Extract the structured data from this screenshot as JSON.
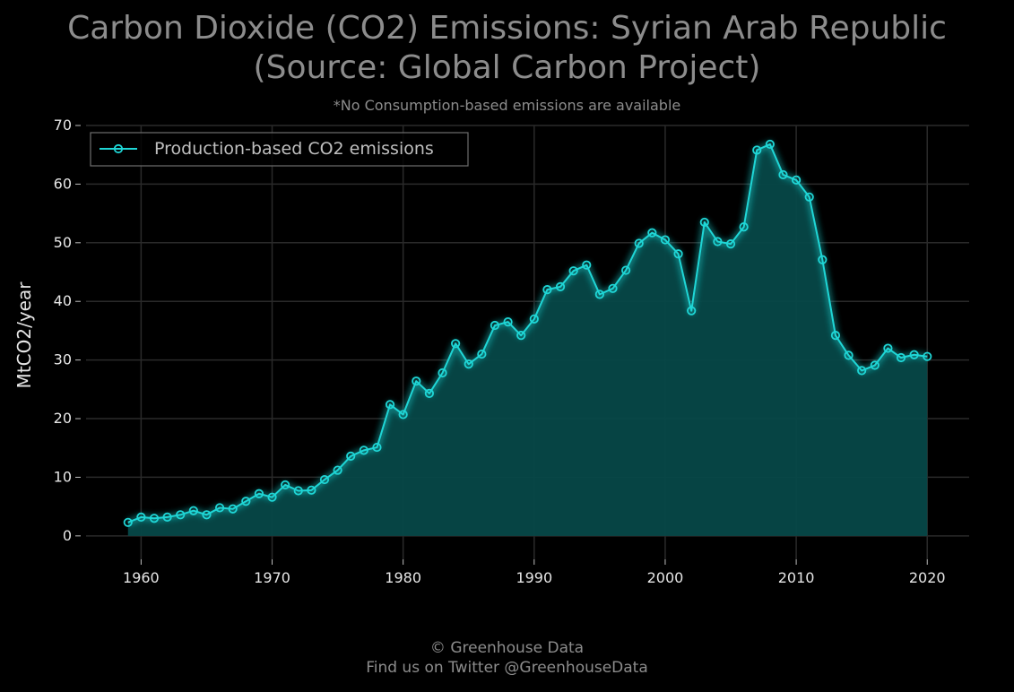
{
  "header": {
    "title": "Carbon Dioxide (CO2) Emissions: Syrian Arab Republic\n(Source: Global Carbon Project)",
    "subtitle": "*No Consumption-based emissions are available"
  },
  "footer": {
    "copyright": "© Greenhouse Data",
    "twitter": "Find us on Twitter @GreenhouseData"
  },
  "colors": {
    "background": "#000000",
    "series": "#1fd6d6",
    "fill": "#064848",
    "grid": "#2a2a2a",
    "text": "#8c8c8c"
  },
  "chart_data": {
    "type": "area",
    "title": "Carbon Dioxide (CO2) Emissions: Syrian Arab Republic (Source: Global Carbon Project)",
    "xlabel": "",
    "ylabel": "MtCO2/year",
    "xlim": [
      1955.8,
      2023.2
    ],
    "ylim": [
      -4,
      70
    ],
    "x_ticks": [
      1960,
      1970,
      1980,
      1990,
      2000,
      2010,
      2020
    ],
    "y_ticks": [
      0,
      10,
      20,
      30,
      40,
      50,
      60,
      70
    ],
    "grid": true,
    "legend_position": "top-left",
    "series": [
      {
        "name": "Production-based CO2 emissions",
        "x": [
          1959,
          1960,
          1961,
          1962,
          1963,
          1964,
          1965,
          1966,
          1967,
          1968,
          1969,
          1970,
          1971,
          1972,
          1973,
          1974,
          1975,
          1976,
          1977,
          1978,
          1979,
          1980,
          1981,
          1982,
          1983,
          1984,
          1985,
          1986,
          1987,
          1988,
          1989,
          1990,
          1991,
          1992,
          1993,
          1994,
          1995,
          1996,
          1997,
          1998,
          1999,
          2000,
          2001,
          2002,
          2003,
          2004,
          2005,
          2006,
          2007,
          2008,
          2009,
          2010,
          2011,
          2012,
          2013,
          2014,
          2015,
          2016,
          2017,
          2018,
          2019,
          2020
        ],
        "values": [
          2.3,
          3.2,
          3.0,
          3.2,
          3.6,
          4.3,
          3.6,
          4.8,
          4.6,
          5.9,
          7.2,
          6.6,
          8.7,
          7.7,
          7.8,
          9.6,
          11.2,
          13.6,
          14.6,
          15.1,
          22.4,
          20.7,
          26.4,
          24.3,
          27.8,
          32.8,
          29.3,
          31.0,
          35.9,
          36.5,
          34.2,
          37.0,
          42.0,
          42.5,
          45.2,
          46.2,
          41.2,
          42.2,
          45.3,
          49.9,
          51.7,
          50.5,
          48.1,
          38.4,
          53.5,
          50.2,
          49.8,
          52.7,
          65.8,
          66.8,
          61.6,
          60.7,
          57.8,
          47.1,
          34.2,
          30.8,
          28.2,
          29.1,
          32.0,
          30.4,
          30.9,
          30.6
        ]
      }
    ]
  }
}
